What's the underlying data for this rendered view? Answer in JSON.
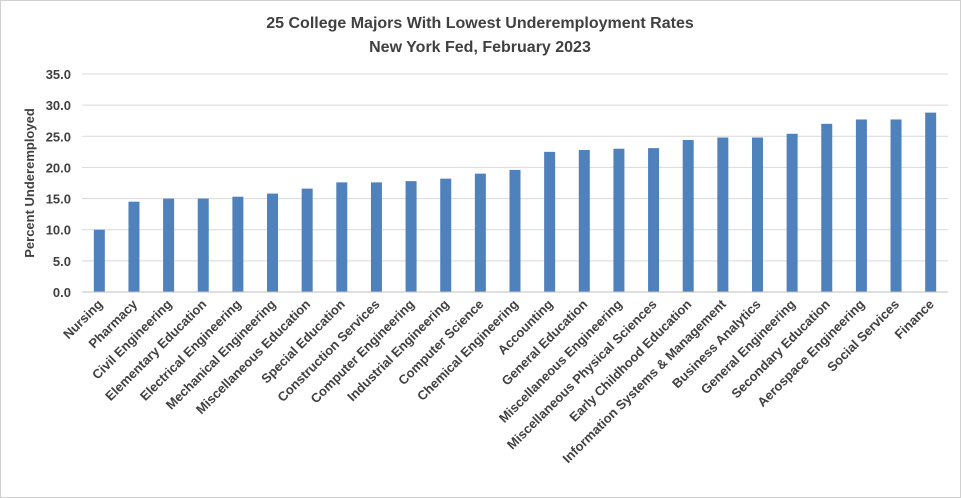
{
  "chart_data": {
    "type": "bar",
    "title": "25 College Majors With Lowest Underemployment Rates",
    "subtitle": "New York Fed, February 2023",
    "xlabel": "",
    "ylabel": "Percent Underemployed",
    "ylim": [
      0,
      35
    ],
    "ytick_step": 5,
    "ytick_labels": [
      "0.0",
      "5.0",
      "10.0",
      "15.0",
      "20.0",
      "25.0",
      "30.0",
      "35.0"
    ],
    "grid": true,
    "legend": "none",
    "bar_color": "#4f81bd",
    "categories": [
      "Nursing",
      "Pharmacy",
      "Civil Engineering",
      "Elementary Education",
      "Electrical Engineering",
      "Mechanical Engineering",
      "Miscellaneous Education",
      "Special Education",
      "Construction Services",
      "Computer Engineering",
      "Industrial Engineering",
      "Computer Science",
      "Chemical Engineering",
      "Accounting",
      "General Education",
      "Miscellaneous Engineering",
      "Miscellaneous Physical Sciences",
      "Early Childhood Education",
      "Information Systems & Management",
      "Business Analytics",
      "General Engineering",
      "Secondary Education",
      "Aerospace Engineering",
      "Social Services",
      "Finance"
    ],
    "values": [
      10.0,
      14.5,
      15.0,
      15.0,
      15.3,
      15.8,
      16.6,
      17.6,
      17.6,
      17.8,
      18.2,
      19.0,
      19.6,
      22.5,
      22.8,
      23.0,
      23.1,
      24.4,
      24.8,
      24.8,
      25.4,
      27.0,
      27.7,
      27.7,
      28.8
    ]
  }
}
